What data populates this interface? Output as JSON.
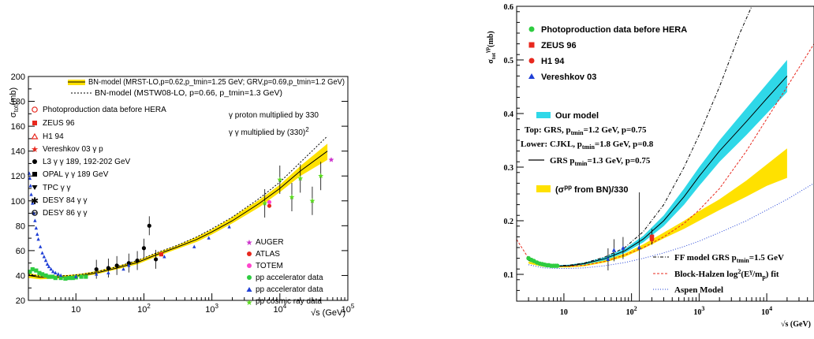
{
  "chart_data": [
    {
      "type": "scatter",
      "xscale": "log",
      "xlim": [
        2,
        100000
      ],
      "ylim": [
        20,
        200
      ],
      "ylabel": "σ_tot(mb)",
      "xlabel": "√s (GeV)",
      "xticks": [
        "10",
        "10^2",
        "10^3",
        "10^4",
        "10^5"
      ],
      "yticks": [
        "20",
        "40",
        "60",
        "80",
        "100",
        "120",
        "140",
        "160",
        "180",
        "200"
      ],
      "band_legend": "BN-model (MRST-LO,p=0.62,p_tmin=1.25 GeV; GRV,p=0.69,p_tmin=1.2 GeV)",
      "dotted_legend": "BN-model (MSTW08-LO, p=0.66, p_tmin=1.3 GeV)",
      "legend": [
        "Photoproduction data before HERA",
        "ZEUS 96",
        "H1 94",
        "Vereshkov 03 γ p",
        "L3 γ γ  189, 192-202 GeV",
        "OPAL γ γ 189 GeV",
        "TPC γ γ",
        "DESY 84 γ γ",
        "DESY 86 γ γ"
      ],
      "legend2": [
        "AUGER",
        "ATLAS",
        "TOTEM",
        "pp accelerator data",
        "pp accelerator data",
        "pp cosmic ray data"
      ],
      "notes": [
        "γ proton multiplied by 330",
        "γ γ multiplied by (330)^2"
      ],
      "band": {
        "x": [
          2,
          3,
          5,
          8,
          12,
          20,
          40,
          80,
          150,
          300,
          600,
          1000,
          2000,
          5000,
          10000,
          20000,
          50000
        ],
        "lower": [
          38,
          37,
          37.5,
          38,
          39,
          41,
          45,
          49,
          55,
          61,
          67,
          73,
          82,
          95,
          107,
          120,
          133
        ],
        "upper": [
          42,
          40,
          40,
          40.5,
          41.5,
          43.5,
          47.5,
          52,
          58,
          64,
          71,
          77,
          87,
          101,
          113,
          128,
          146
        ]
      },
      "model_line": {
        "x": [
          2,
          3,
          5,
          8,
          12,
          20,
          40,
          80,
          150,
          300,
          600,
          1000,
          2000,
          5000,
          10000,
          20000,
          50000
        ],
        "y": [
          40,
          38.5,
          38.5,
          39,
          40,
          42,
          46,
          50.5,
          56.5,
          62.5,
          69,
          75,
          84,
          98,
          110,
          124,
          140
        ]
      },
      "dotted_line": {
        "x": [
          2,
          3,
          5,
          8,
          12,
          20,
          40,
          80,
          150,
          300,
          600,
          1000,
          2000,
          5000,
          10000,
          20000,
          50000
        ],
        "y": [
          41,
          39.5,
          39.5,
          40,
          41,
          43,
          47,
          52,
          58,
          64,
          71,
          77.5,
          87,
          102,
          115,
          131,
          152
        ]
      },
      "series": [
        {
          "name": "Photoproduction data before HERA",
          "color": "#2ecc40",
          "marker": "square",
          "x": [
            2.1,
            2.3,
            2.6,
            2.9,
            3.2,
            3.6,
            4.0,
            4.5,
            5.0,
            6.0,
            7.0,
            8.0,
            9.0,
            10.0,
            12.0,
            14.0
          ],
          "y": [
            43,
            45,
            44,
            42,
            41,
            40,
            39,
            39,
            38,
            38,
            37.5,
            38,
            38,
            38.5,
            39,
            39
          ]
        },
        {
          "name": "DESY low energy γγ",
          "color": "#1f3fd6",
          "marker": "triangle",
          "x": [
            2.05,
            2.1,
            2.15,
            2.2,
            2.3,
            2.4,
            2.5,
            2.6,
            2.7,
            2.8,
            3.0,
            3.2,
            3.4,
            3.6,
            3.8,
            4.0,
            4.3,
            4.6,
            5.0,
            5.5,
            6.0
          ],
          "y": [
            122,
            118,
            112,
            105,
            98,
            90,
            84,
            78,
            73,
            69,
            63,
            58,
            55,
            52,
            49,
            47,
            45,
            43,
            42,
            41,
            40
          ]
        },
        {
          "name": "ZEUS 96",
          "color": "#e8281e",
          "marker": "square",
          "x": [
            180
          ],
          "y": [
            57
          ]
        },
        {
          "name": "L3 γ γ  189, 192-202 GeV",
          "color": "#000000",
          "marker": "circle",
          "x": [
            20,
            30,
            40,
            60,
            80,
            100,
            120,
            150
          ],
          "y": [
            45,
            46,
            48,
            50,
            52,
            62,
            80,
            53
          ]
        },
        {
          "name": "pp accelerator data",
          "color": "#1f3fd6",
          "marker": "triangle",
          "x": [
            10,
            20,
            30,
            50,
            60,
            200,
            550,
            900,
            1800
          ],
          "y": [
            39,
            41,
            42,
            45,
            48,
            55,
            63,
            70,
            79
          ]
        },
        {
          "name": "pp cosmic ray data",
          "color": "#5adc1e",
          "marker": "star",
          "x": [
            6000,
            10000,
            15000,
            20000,
            30000,
            40000
          ],
          "y": [
            98,
            117,
            103,
            118,
            100,
            120
          ]
        },
        {
          "name": "AUGER",
          "color": "#cc33cc",
          "marker": "star",
          "x": [
            57000
          ],
          "y": [
            133
          ]
        },
        {
          "name": "ATLAS",
          "color": "#e8281e",
          "marker": "circle",
          "x": [
            7000
          ],
          "y": [
            96
          ]
        },
        {
          "name": "TOTEM",
          "color": "#ff44cc",
          "marker": "circle",
          "x": [
            7000
          ],
          "y": [
            99
          ]
        }
      ]
    },
    {
      "type": "line",
      "xscale": "log",
      "xlim": [
        2,
        50000
      ],
      "ylim": [
        0.05,
        0.6
      ],
      "ylabel": "σ_tot^γp(mb)",
      "xlabel": "√s (GeV)",
      "xticks": [
        "10",
        "10^2",
        "10^3",
        "10^4"
      ],
      "yticks": [
        "0.1",
        "0.2",
        "0.3",
        "0.4",
        "0.5",
        "0.6"
      ],
      "legend_top": [
        "Photoproduction data before HERA",
        "ZEUS 96",
        "H1 94",
        "Vereshkov 03"
      ],
      "our_model": "Our model",
      "top_line": "Top: GRS, p_tmin=1.2 GeV, p=0.75",
      "lower_line": "Lower: CJKL, p_tmin=1.8 GeV, p=0.8",
      "grs_line": "GRS p_tmin=1.3 GeV, p=0.75",
      "bn_band": "(σ^pp from BN)/330",
      "legend_bottom": [
        "FF model GRS p_tmin=1.5 GeV",
        "Block-Halzen log^2(E^γ/m_p) fit",
        "Aspen Model"
      ],
      "cyan_band": {
        "x": [
          3,
          5,
          8,
          12,
          20,
          40,
          80,
          150,
          300,
          600,
          1000,
          2000,
          5000,
          10000,
          20000
        ],
        "lower": [
          0.125,
          0.115,
          0.114,
          0.115,
          0.118,
          0.126,
          0.14,
          0.16,
          0.19,
          0.23,
          0.265,
          0.31,
          0.36,
          0.4,
          0.44
        ],
        "upper": [
          0.128,
          0.118,
          0.117,
          0.118,
          0.122,
          0.132,
          0.148,
          0.172,
          0.21,
          0.26,
          0.3,
          0.35,
          0.41,
          0.455,
          0.5
        ]
      },
      "yellow_band": {
        "x": [
          3,
          5,
          8,
          12,
          20,
          40,
          80,
          150,
          300,
          600,
          1000,
          2000,
          5000,
          10000,
          20000
        ],
        "lower": [
          0.12,
          0.114,
          0.113,
          0.113,
          0.115,
          0.122,
          0.133,
          0.148,
          0.167,
          0.185,
          0.2,
          0.22,
          0.245,
          0.265,
          0.28
        ],
        "upper": [
          0.124,
          0.117,
          0.116,
          0.117,
          0.119,
          0.127,
          0.139,
          0.156,
          0.178,
          0.2,
          0.218,
          0.24,
          0.275,
          0.305,
          0.335
        ]
      },
      "grs_curve": {
        "x": [
          3,
          5,
          8,
          12,
          20,
          40,
          80,
          150,
          300,
          600,
          1000,
          2000,
          5000,
          10000,
          20000
        ],
        "y": [
          0.126,
          0.116,
          0.115,
          0.116,
          0.12,
          0.129,
          0.144,
          0.166,
          0.2,
          0.245,
          0.283,
          0.33,
          0.385,
          0.428,
          0.47
        ]
      },
      "ff_curve": {
        "x": [
          3,
          5,
          8,
          12,
          20,
          40,
          80,
          150,
          300,
          600,
          1000,
          2000,
          4000,
          6000
        ],
        "y": [
          0.128,
          0.117,
          0.116,
          0.117,
          0.121,
          0.132,
          0.15,
          0.18,
          0.23,
          0.3,
          0.36,
          0.45,
          0.55,
          0.6
        ]
      },
      "bh_curve": {
        "x": [
          2,
          3,
          5,
          8,
          12,
          20,
          40,
          80,
          150,
          300,
          600,
          1000,
          2000,
          5000,
          10000,
          20000,
          50000
        ],
        "y": [
          0.165,
          0.13,
          0.118,
          0.115,
          0.115,
          0.117,
          0.124,
          0.136,
          0.15,
          0.17,
          0.195,
          0.22,
          0.26,
          0.33,
          0.39,
          0.45,
          0.53
        ]
      },
      "aspen_curve": {
        "x": [
          3,
          5,
          8,
          12,
          20,
          40,
          80,
          150,
          300,
          600,
          1000,
          2000,
          5000,
          10000,
          20000,
          50000
        ],
        "y": [
          0.118,
          0.112,
          0.111,
          0.111,
          0.112,
          0.116,
          0.122,
          0.13,
          0.14,
          0.152,
          0.162,
          0.178,
          0.2,
          0.22,
          0.24,
          0.27
        ]
      },
      "series": [
        {
          "name": "Photoproduction data before HERA",
          "color": "#2ecc40",
          "marker": "circle",
          "x": [
            3.0,
            3.3,
            3.6,
            4.0,
            4.4,
            4.8,
            5.2,
            5.6,
            6.0,
            6.5,
            7.0,
            7.5,
            8.0
          ],
          "y": [
            0.13,
            0.127,
            0.125,
            0.122,
            0.12,
            0.119,
            0.118,
            0.117,
            0.117,
            0.116,
            0.116,
            0.116,
            0.116
          ]
        },
        {
          "name": "Vereshkov 03",
          "color": "#1f3fd6",
          "marker": "triangle",
          "x": [
            45,
            55,
            75,
            130
          ],
          "y": [
            0.128,
            0.145,
            0.149,
            0.15
          ]
        },
        {
          "name": "ZEUS 96",
          "color": "#e8281e",
          "marker": "square",
          "x": [
            200
          ],
          "y": [
            0.17
          ]
        },
        {
          "name": "H1 94",
          "color": "#e8281e",
          "marker": "circle",
          "x": [
            200
          ],
          "y": [
            0.165
          ]
        }
      ]
    }
  ]
}
